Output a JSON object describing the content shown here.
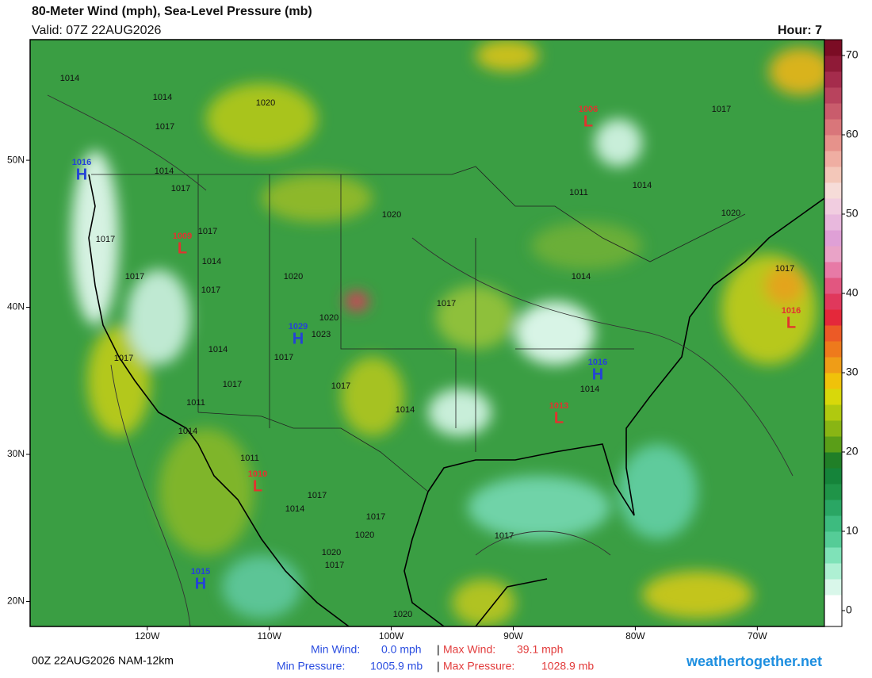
{
  "header": {
    "title": "80-Meter Wind (mph), Sea-Level Pressure (mb)",
    "valid": "Valid: 07Z 22AUG2026",
    "hour": "Hour: 7"
  },
  "map": {
    "lonlim": [
      -129.6,
      -64.5
    ],
    "latlim": [
      18.3,
      58.2
    ],
    "lon_ticks": [
      {
        "value": -120,
        "label": "120W"
      },
      {
        "value": -110,
        "label": "110W"
      },
      {
        "value": -100,
        "label": "100W"
      },
      {
        "value": -90,
        "label": "90W"
      },
      {
        "value": -80,
        "label": "80W"
      },
      {
        "value": -70,
        "label": "70W"
      }
    ],
    "lat_ticks": [
      {
        "value": 50,
        "label": "50N"
      },
      {
        "value": 40,
        "label": "40N"
      },
      {
        "value": 30,
        "label": "30N"
      },
      {
        "value": 20,
        "label": "20N"
      }
    ],
    "isobar_labels": [
      "1014",
      "1014",
      "1017",
      "1020",
      "1014",
      "1017",
      "1017",
      "1017",
      "1014",
      "1017",
      "1020",
      "1017",
      "1020",
      "1017",
      "1014",
      "1011",
      "1014",
      "1017",
      "1020",
      "1017",
      "1020",
      "1023",
      "1017",
      "1014",
      "1017",
      "1017",
      "1014",
      "1014",
      "1011",
      "1014",
      "1017",
      "1011",
      "1017",
      "1014",
      "1017",
      "1020",
      "1020",
      "1017",
      "1017",
      "1020"
    ],
    "centers": [
      {
        "letter": "L",
        "value": "1006"
      },
      {
        "letter": "H",
        "value": "1016"
      },
      {
        "letter": "L",
        "value": "1009"
      },
      {
        "letter": "H",
        "value": "1029"
      },
      {
        "letter": "L",
        "value": "1016"
      },
      {
        "letter": "H",
        "value": "1016"
      },
      {
        "letter": "L",
        "value": "1013"
      },
      {
        "letter": "L",
        "value": "1010"
      },
      {
        "letter": "H",
        "value": "1015"
      }
    ]
  },
  "colorbar": {
    "range": [
      -2,
      72
    ],
    "ticks": [
      0,
      10,
      20,
      30,
      40,
      50,
      60,
      70
    ]
  },
  "footer": {
    "run": "00Z 22AUG2026 NAM-12km",
    "min_wind_label": "Min Wind:",
    "min_wind": "0.0 mph",
    "max_wind_label": "Max Wind:",
    "max_wind": "39.1 mph",
    "min_pressure_label": "Min Pressure:",
    "min_pressure": "1005.9 mb",
    "max_pressure_label": "Max Pressure:",
    "max_pressure": "1028.9 mb",
    "site": "weathertogether.net"
  }
}
